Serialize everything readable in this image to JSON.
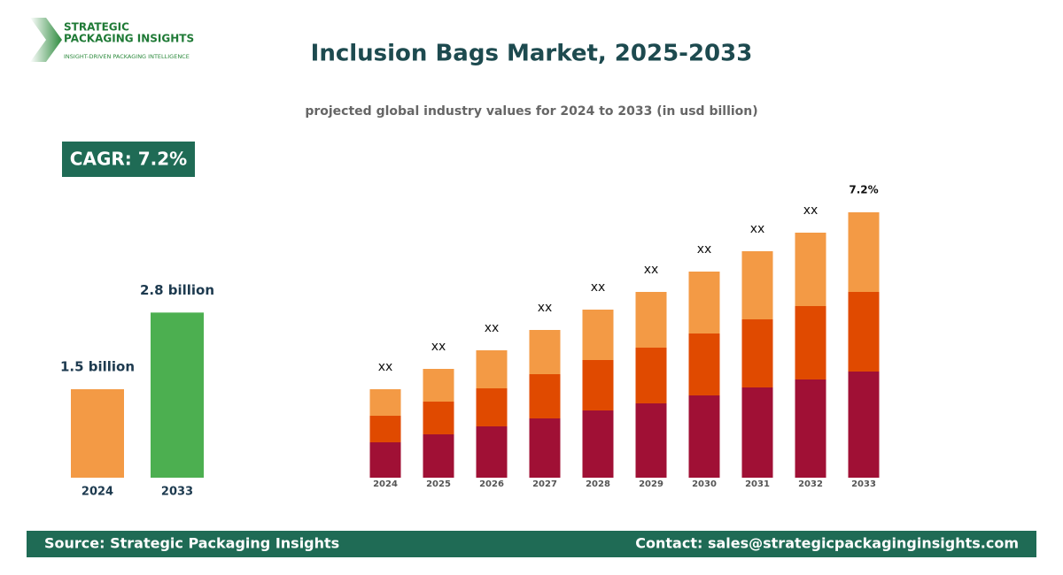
{
  "logo": {
    "name_line1": "STRATEGIC",
    "name_line2": "PACKAGING INSIGHTS",
    "tagline": "INSIGHT-DRIVEN PACKAGING INTELLIGENCE"
  },
  "header": {
    "title": "Inclusion Bags Market, 2025-2033",
    "subtitle": "projected global industry values for 2024 to 2033 (in usd billion)"
  },
  "badge": "CAGR: 7.2%",
  "chart_data": [
    {
      "type": "bar",
      "categories": [
        "2024",
        "2033"
      ],
      "values": [
        1.5,
        2.8
      ],
      "value_labels": [
        "1.5 billion",
        "2.8 billion"
      ],
      "colors": [
        "#f39a45",
        "#4caf50"
      ],
      "ylim": [
        0,
        4.2
      ]
    },
    {
      "type": "stacked-bar",
      "categories": [
        "2024",
        "2025",
        "2026",
        "2027",
        "2028",
        "2029",
        "2030",
        "2031",
        "2032",
        "2033"
      ],
      "series": [
        {
          "color": "#a01035",
          "values": [
            40,
            49,
            58,
            67,
            76,
            84,
            93,
            102,
            111,
            120
          ]
        },
        {
          "color": "#e04a00",
          "values": [
            30,
            37,
            43,
            50,
            57,
            63,
            70,
            77,
            83,
            90
          ]
        },
        {
          "color": "#f39a45",
          "values": [
            30,
            37,
            43,
            50,
            57,
            63,
            70,
            77,
            83,
            90
          ]
        }
      ],
      "top_labels": [
        "xx",
        "xx",
        "xx",
        "xx",
        "xx",
        "xx",
        "xx",
        "xx",
        "xx",
        "7.2%"
      ],
      "ylim": [
        0,
        300
      ]
    }
  ],
  "footer": {
    "source": "Source: Strategic Packaging Insights",
    "contact": "Contact: sales@strategicpackaginginsights.com"
  }
}
